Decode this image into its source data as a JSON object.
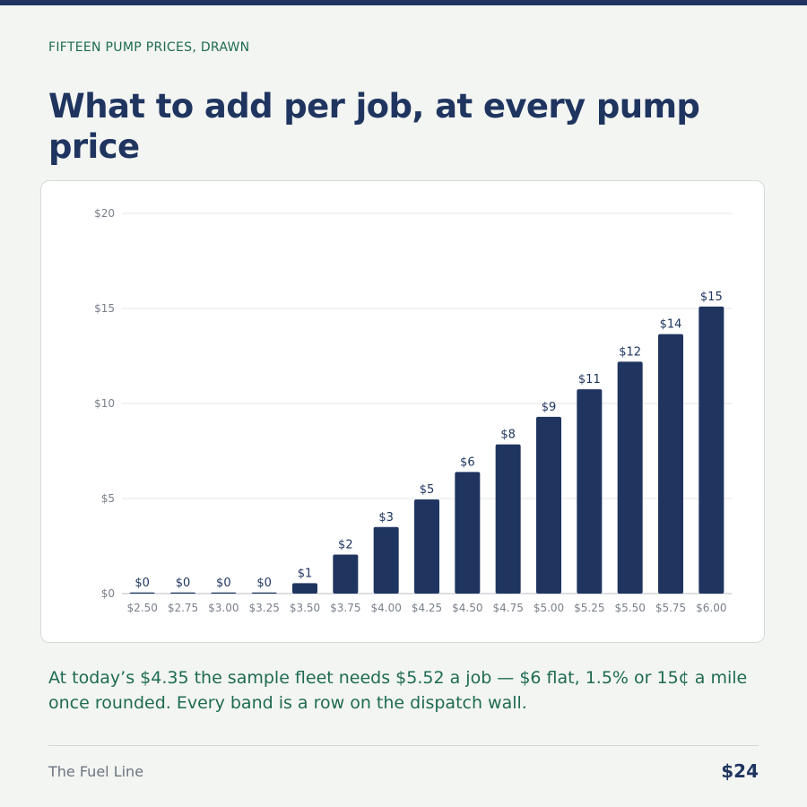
{
  "kicker": "FIFTEEN PUMP PRICES, DRAWN",
  "headline": "What to add per job, at every pump price",
  "caption": "At today’s $4.35 the sample fleet needs $5.52 a job — $6 flat, 1.5% or 15¢ a mile once rounded. Every band is a row on the dispatch wall.",
  "footer": {
    "brand": "The Fuel Line",
    "price": "$24"
  },
  "colors": {
    "bar": "#1f3560",
    "accent": "#1e6b52",
    "grid": "#e3e6e4",
    "axis_text": "#7a808a"
  },
  "chart_data": {
    "type": "bar",
    "title": "",
    "xlabel": "",
    "ylabel": "",
    "categories": [
      "$2.50",
      "$2.75",
      "$3.00",
      "$3.25",
      "$3.50",
      "$3.75",
      "$4.00",
      "$4.25",
      "$4.50",
      "$4.75",
      "$5.00",
      "$5.25",
      "$5.50",
      "$5.75",
      "$6.00"
    ],
    "values": [
      0,
      0,
      0,
      0,
      0.55,
      2.05,
      3.5,
      4.95,
      6.4,
      7.85,
      9.3,
      10.75,
      12.2,
      13.65,
      15.1
    ],
    "data_labels": [
      "$0",
      "$0",
      "$0",
      "$0",
      "$1",
      "$2",
      "$3",
      "$5",
      "$6",
      "$8",
      "$9",
      "$11",
      "$12",
      "$14",
      "$15"
    ],
    "ylim": [
      0,
      20
    ],
    "yticks": [
      0,
      5,
      10,
      15,
      20
    ],
    "ytick_labels": [
      "$0",
      "$5",
      "$10",
      "$15",
      "$20"
    ],
    "grid": true,
    "legend": "none"
  }
}
